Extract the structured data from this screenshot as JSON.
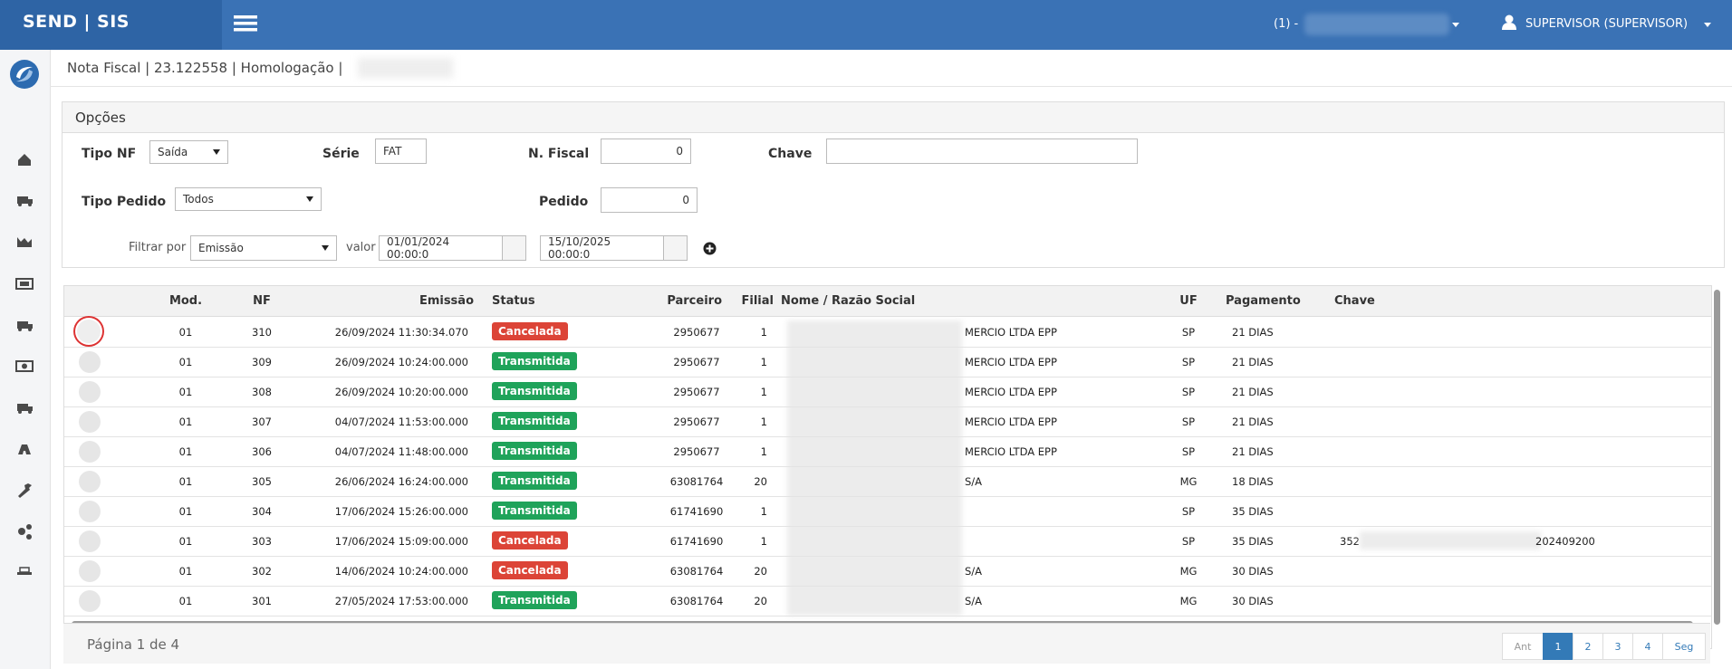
{
  "header": {
    "brand": "SEND | SIS",
    "company": "(1) -",
    "user": "SUPERVISOR (SUPERVISOR)"
  },
  "breadcrumb": "Nota Fiscal | 23.122558 | Homologação |",
  "options": {
    "title": "Opções",
    "tipo_nf": {
      "label": "Tipo NF",
      "value": "Saída"
    },
    "serie": {
      "label": "Série",
      "value": "FAT"
    },
    "n_fiscal": {
      "label": "N. Fiscal",
      "value": "0"
    },
    "chave": {
      "label": "Chave"
    },
    "tipo_pedido": {
      "label": "Tipo Pedido",
      "value": "Todos"
    },
    "pedido": {
      "label": "Pedido",
      "value": "0"
    },
    "filtrar": {
      "label": "Filtrar por",
      "value": "Emissão"
    },
    "valor": {
      "label": "valor",
      "from": "01/01/2024 00:00:0",
      "to": "15/10/2025 00:00:0"
    }
  },
  "table": {
    "columns": [
      "Mod.",
      "NF",
      "Emissão",
      "Status",
      "Parceiro",
      "Filial",
      "Nome / Razão Social",
      "UF",
      "Pagamento",
      "Chave"
    ],
    "status_colors": {
      "Cancelada": "#dc4437",
      "Transmitida": "#1fa35a"
    },
    "rows": [
      [
        "01",
        "310",
        "26/09/2024 11:30:34.070",
        "Cancelada",
        "2950677",
        "1",
        "MERCIO LTDA EPP",
        "SP",
        "21 DIAS",
        null
      ],
      [
        "01",
        "309",
        "26/09/2024 10:24:00.000",
        "Transmitida",
        "2950677",
        "1",
        "MERCIO LTDA EPP",
        "SP",
        "21 DIAS",
        null
      ],
      [
        "01",
        "308",
        "26/09/2024 10:20:00.000",
        "Transmitida",
        "2950677",
        "1",
        "MERCIO LTDA EPP",
        "SP",
        "21 DIAS",
        null
      ],
      [
        "01",
        "307",
        "04/07/2024 11:53:00.000",
        "Transmitida",
        "2950677",
        "1",
        "MERCIO LTDA EPP",
        "SP",
        "21 DIAS",
        null
      ],
      [
        "01",
        "306",
        "04/07/2024 11:48:00.000",
        "Transmitida",
        "2950677",
        "1",
        "MERCIO LTDA EPP",
        "SP",
        "21 DIAS",
        null
      ],
      [
        "01",
        "305",
        "26/06/2024 16:24:00.000",
        "Transmitida",
        "63081764",
        "20",
        "S/A",
        "MG",
        "18 DIAS",
        null
      ],
      [
        "01",
        "304",
        "17/06/2024 15:26:00.000",
        "Transmitida",
        "61741690",
        "1",
        null,
        "SP",
        "35 DIAS",
        null
      ],
      [
        "01",
        "303",
        "17/06/2024 15:09:00.000",
        "Cancelada",
        "61741690",
        "1",
        null,
        "SP",
        "35 DIAS",
        [
          "352",
          "202409200"
        ]
      ],
      [
        "01",
        "302",
        "14/06/2024 10:24:00.000",
        "Cancelada",
        "63081764",
        "20",
        "S/A",
        "MG",
        "30 DIAS",
        null
      ],
      [
        "01",
        "301",
        "27/05/2024 17:53:00.000",
        "Transmitida",
        "63081764",
        "20",
        "S/A",
        "MG",
        "30 DIAS",
        null
      ]
    ]
  },
  "footer": {
    "page": "Página 1 de 4",
    "pages": [
      "Ant",
      "1",
      "2",
      "3",
      "4",
      "Seg"
    ]
  }
}
